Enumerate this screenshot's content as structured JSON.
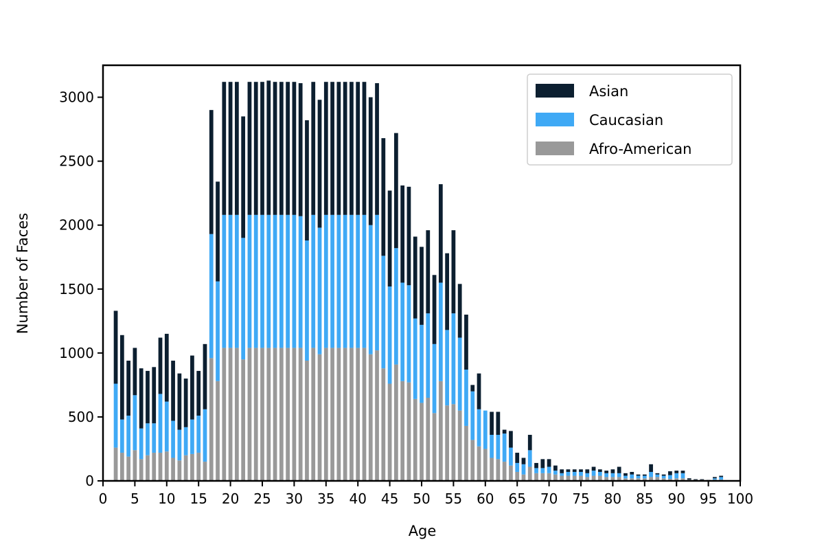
{
  "chart_data": {
    "type": "bar",
    "stacked": true,
    "title": "",
    "xlabel": "Age",
    "ylabel": "Number of Faces",
    "xlim": [
      0,
      100
    ],
    "ylim": [
      0,
      3250
    ],
    "x_ticks": [
      0,
      5,
      10,
      15,
      20,
      25,
      30,
      35,
      40,
      45,
      50,
      55,
      60,
      65,
      70,
      75,
      80,
      85,
      90,
      95,
      100
    ],
    "y_ticks": [
      0,
      500,
      1000,
      1500,
      2000,
      2500,
      3000
    ],
    "grid": false,
    "legend_position": "top-right",
    "x": [
      2,
      3,
      4,
      5,
      6,
      7,
      8,
      9,
      10,
      11,
      12,
      13,
      14,
      15,
      16,
      17,
      18,
      19,
      20,
      21,
      22,
      23,
      24,
      25,
      26,
      27,
      28,
      29,
      30,
      31,
      32,
      33,
      34,
      35,
      36,
      37,
      38,
      39,
      40,
      41,
      42,
      43,
      44,
      45,
      46,
      47,
      48,
      49,
      50,
      51,
      52,
      53,
      54,
      55,
      56,
      57,
      58,
      59,
      60,
      61,
      62,
      63,
      64,
      65,
      66,
      67,
      68,
      69,
      70,
      71,
      72,
      73,
      74,
      75,
      76,
      77,
      78,
      79,
      80,
      81,
      82,
      83,
      84,
      85,
      86,
      87,
      88,
      89,
      90,
      91,
      92,
      93,
      94,
      95,
      96,
      97
    ],
    "series": [
      {
        "name": "Afro-American",
        "color": "#999999",
        "values": [
          260,
          220,
          190,
          240,
          170,
          200,
          220,
          220,
          230,
          180,
          160,
          200,
          210,
          220,
          150,
          960,
          780,
          1040,
          1040,
          1040,
          950,
          1040,
          1040,
          1040,
          1040,
          1040,
          1040,
          1040,
          1040,
          1040,
          940,
          1040,
          990,
          1040,
          1040,
          1040,
          1040,
          1040,
          1040,
          1040,
          990,
          1020,
          880,
          760,
          910,
          780,
          770,
          640,
          610,
          650,
          530,
          780,
          590,
          600,
          550,
          430,
          320,
          270,
          250,
          180,
          170,
          150,
          120,
          70,
          50,
          110,
          60,
          60,
          60,
          50,
          40,
          40,
          40,
          40,
          30,
          40,
          40,
          30,
          30,
          30,
          20,
          20,
          20,
          20,
          30,
          30,
          20,
          15,
          20,
          20,
          10,
          8,
          8,
          5,
          10,
          10
        ]
      },
      {
        "name": "Caucasian",
        "color": "#3fa9f5",
        "values": [
          500,
          260,
          320,
          430,
          240,
          250,
          230,
          460,
          390,
          290,
          240,
          220,
          270,
          290,
          410,
          970,
          780,
          1040,
          1040,
          1040,
          950,
          1040,
          1040,
          1040,
          1040,
          1040,
          1040,
          1040,
          1040,
          1030,
          940,
          1040,
          990,
          1040,
          1040,
          1040,
          1040,
          1040,
          1040,
          1040,
          1010,
          1060,
          880,
          760,
          910,
          770,
          760,
          630,
          610,
          660,
          540,
          770,
          590,
          710,
          570,
          440,
          380,
          290,
          300,
          180,
          190,
          220,
          140,
          70,
          80,
          130,
          40,
          40,
          50,
          30,
          20,
          30,
          30,
          30,
          30,
          40,
          30,
          30,
          30,
          30,
          20,
          30,
          20,
          20,
          40,
          20,
          20,
          30,
          40,
          40,
          0,
          0,
          0,
          0,
          10,
          20
        ]
      },
      {
        "name": "Asian",
        "color": "#0c1f30",
        "values": [
          570,
          660,
          430,
          370,
          470,
          410,
          440,
          440,
          530,
          470,
          440,
          380,
          500,
          350,
          510,
          970,
          780,
          1040,
          1040,
          1040,
          950,
          1040,
          1040,
          1040,
          1050,
          1040,
          1040,
          1040,
          1040,
          1040,
          940,
          1040,
          1000,
          1040,
          1040,
          1040,
          1040,
          1040,
          1040,
          1040,
          1000,
          1030,
          920,
          750,
          900,
          760,
          770,
          640,
          610,
          650,
          540,
          770,
          600,
          650,
          420,
          430,
          50,
          280,
          0,
          180,
          180,
          30,
          130,
          80,
          50,
          120,
          40,
          70,
          60,
          40,
          30,
          20,
          20,
          20,
          30,
          30,
          20,
          20,
          30,
          50,
          20,
          20,
          10,
          10,
          60,
          10,
          10,
          30,
          20,
          20,
          10,
          5,
          5,
          2,
          10,
          10
        ]
      }
    ]
  }
}
